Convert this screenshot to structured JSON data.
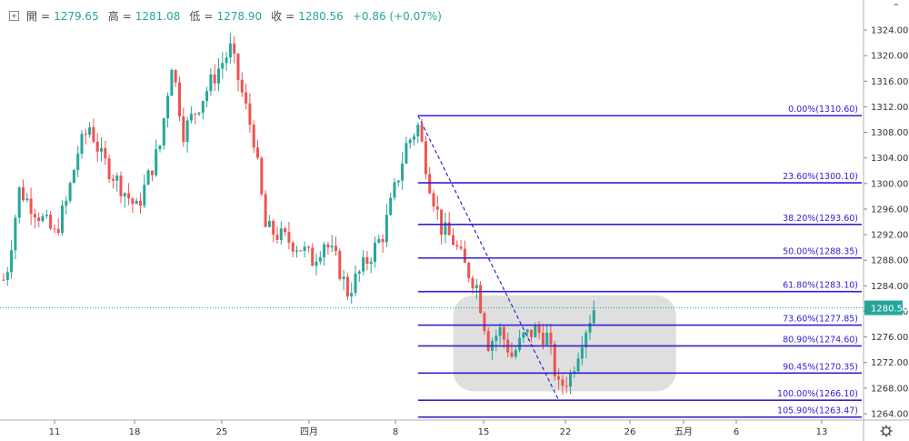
{
  "legend": {
    "open_label": "開",
    "open": "1279.65",
    "high_label": "高",
    "high": "1281.08",
    "low_label": "低",
    "low": "1278.90",
    "close_label": "收",
    "close": "1280.56",
    "change": "+0.86 (+0.07%)"
  },
  "icons": {
    "collapse": "plus-square-icon",
    "settings": "gear-icon",
    "corner": "chevron-up-icon"
  },
  "colors": {
    "up": "#26a69a",
    "down": "#ef5350",
    "fib": "#3322cc",
    "price_line": "#26a69a",
    "zone": "#d9d9d9"
  },
  "chart_data": {
    "type": "candlestick",
    "ylim": [
      1260,
      1328
    ],
    "y_ticks": [
      "1324.00",
      "1320.00",
      "1316.00",
      "1312.00",
      "1308.00",
      "1304.00",
      "1300.00",
      "1296.00",
      "1292.00",
      "1288.00",
      "1284.00",
      "1280.00",
      "1276.00",
      "1272.00",
      "1268.00",
      "1264.00"
    ],
    "x_ticks": [
      "11",
      "18",
      "25",
      "四月",
      "8",
      "15",
      "22",
      "26",
      "五月",
      "6",
      "13"
    ],
    "last_price": "1280.56",
    "fibonacci": [
      {
        "label": "0.00%(1310.60)",
        "price": 1310.6
      },
      {
        "label": "23.60%(1300.10)",
        "price": 1300.1
      },
      {
        "label": "38.20%(1293.60)",
        "price": 1293.6
      },
      {
        "label": "50.00%(1288.35)",
        "price": 1288.35
      },
      {
        "label": "61.80%(1283.10)",
        "price": 1283.1
      },
      {
        "label": "73.60%(1277.85)",
        "price": 1277.85
      },
      {
        "label": "80.90%(1274.60)",
        "price": 1274.6
      },
      {
        "label": "90.45%(1270.35)",
        "price": 1270.35
      },
      {
        "label": "100.00%(1266.10)",
        "price": 1266.1
      },
      {
        "label": "105.90%(1263.47)",
        "price": 1263.47
      }
    ],
    "fib_start_date": "Apr 11",
    "fib_end_date": "Apr 23",
    "zone_start_date": "Apr 14",
    "zone_end_date": "May 3",
    "zone_price_top": 1282.5,
    "zone_price_bottom": 1267.5,
    "price_path": [
      [
        "Mar 4",
        1285
      ],
      [
        "Mar 5",
        1284
      ],
      [
        "Mar 6",
        1281
      ],
      [
        "Mar 7",
        1287
      ],
      [
        "Mar 8",
        1299
      ],
      [
        "Mar 11",
        1292
      ],
      [
        "Mar 12",
        1297
      ],
      [
        "Mar 13",
        1305
      ],
      [
        "Mar 14",
        1309
      ],
      [
        "Mar 15",
        1304
      ],
      [
        "Mar 18",
        1296
      ],
      [
        "Mar 19",
        1301
      ],
      [
        "Mar 20",
        1306
      ],
      [
        "Mar 21",
        1319
      ],
      [
        "Mar 22",
        1308
      ],
      [
        "Mar 25",
        1318
      ],
      [
        "Mar 26",
        1321
      ],
      [
        "Mar 27",
        1314
      ],
      [
        "Mar 28",
        1307
      ],
      [
        "Mar 29",
        1293
      ],
      [
        "Apr 1",
        1290
      ],
      [
        "Apr 2",
        1288
      ],
      [
        "Apr 3",
        1291
      ],
      [
        "Apr 4",
        1288
      ],
      [
        "Apr 5",
        1283
      ],
      [
        "Apr 8",
        1292
      ],
      [
        "Apr 9",
        1299
      ],
      [
        "Apr 10",
        1306
      ],
      [
        "Apr 11",
        1309
      ],
      [
        "Apr 12",
        1300
      ],
      [
        "Apr 13",
        1293
      ],
      [
        "Apr 14",
        1291
      ],
      [
        "Apr 15",
        1287
      ],
      [
        "Apr 16",
        1284
      ],
      [
        "Apr 17",
        1275
      ],
      [
        "Apr 18",
        1277
      ],
      [
        "Apr 19",
        1273
      ],
      [
        "Apr 20",
        1276
      ],
      [
        "Apr 21",
        1277
      ],
      [
        "Apr 22",
        1276
      ],
      [
        "Apr 23",
        1268
      ],
      [
        "Apr 24",
        1270
      ],
      [
        "Apr 25",
        1276
      ],
      [
        "Apr 26",
        1280.56
      ]
    ]
  }
}
